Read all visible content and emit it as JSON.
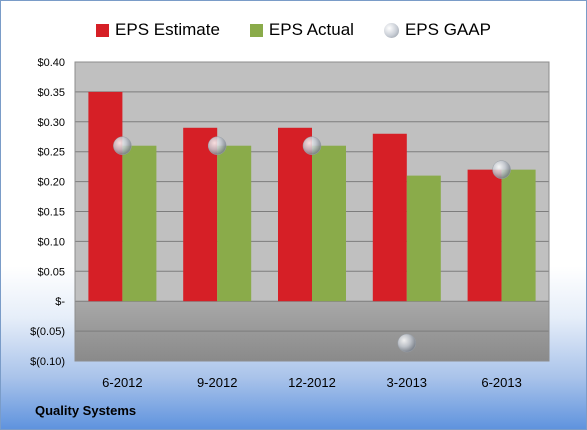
{
  "company_label": "Quality Systems",
  "chart_data": {
    "type": "bar",
    "categories": [
      "6-2012",
      "9-2012",
      "12-2012",
      "3-2013",
      "6-2013"
    ],
    "series": [
      {
        "name": "EPS Estimate",
        "type": "bar",
        "color": "#d61f26",
        "values": [
          0.35,
          0.29,
          0.29,
          0.28,
          0.22
        ]
      },
      {
        "name": "EPS Actual",
        "type": "bar",
        "color": "#8aab4a",
        "values": [
          0.26,
          0.26,
          0.26,
          0.21,
          0.22
        ]
      },
      {
        "name": "EPS GAAP",
        "type": "scatter",
        "color": "#b9bec6",
        "values": [
          0.26,
          0.26,
          0.26,
          -0.07,
          0.22
        ]
      }
    ],
    "ylim": [
      -0.1,
      0.4
    ],
    "yticks": [
      0.4,
      0.35,
      0.3,
      0.25,
      0.2,
      0.15,
      0.1,
      0.05,
      0.0,
      -0.05,
      -0.1
    ],
    "ytick_labels": [
      "$0.40",
      "$0.35",
      "$0.30",
      "$0.25",
      "$0.20",
      "$0.15",
      "$0.10",
      "$0.05",
      "$-",
      "$(0.05)",
      "$(0.10)"
    ],
    "legend_position": "top",
    "grid": true,
    "plot_background": "#c0c0c0"
  }
}
